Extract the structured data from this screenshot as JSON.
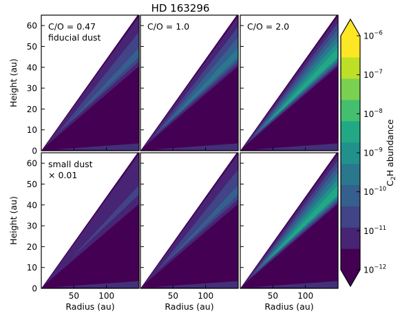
{
  "title": "HD 163296",
  "chart_data": {
    "type": "heatmap",
    "title": "HD 163296",
    "xlabel": "Radius (au)",
    "ylabel": "Height (au)",
    "xlim": [
      0,
      150
    ],
    "ylim": [
      0,
      65
    ],
    "xticks": [
      50,
      100
    ],
    "yticks": [
      0,
      10,
      20,
      30,
      40,
      50,
      60
    ],
    "colorbar": {
      "label_parts": [
        "C",
        "2",
        "H abundance"
      ],
      "scale": "log",
      "range": [
        -12,
        -6
      ],
      "ticks": [
        {
          "base": "10",
          "exp": "−6",
          "value": -6
        },
        {
          "base": "10",
          "exp": "−7",
          "value": -7
        },
        {
          "base": "10",
          "exp": "−8",
          "value": -8
        },
        {
          "base": "10",
          "exp": "−9",
          "value": -9
        },
        {
          "base": "10",
          "exp": "−10",
          "value": -10
        },
        {
          "base": "10",
          "exp": "−11",
          "value": -11
        },
        {
          "base": "10",
          "exp": "−12",
          "value": -12
        }
      ],
      "levels": [
        "#440154",
        "#482475",
        "#414487",
        "#355f8d",
        "#2a788e",
        "#21918c",
        "#22a884",
        "#44bf70",
        "#7ad151",
        "#bddf26",
        "#fde725"
      ]
    },
    "panels": [
      {
        "row": 0,
        "col": 0,
        "labels": [
          "C/O = 0.47",
          "fiducial dust"
        ],
        "peak_log": -10.3
      },
      {
        "row": 0,
        "col": 1,
        "labels": [
          "C/O = 1.0"
        ],
        "peak_log": -9.3
      },
      {
        "row": 0,
        "col": 2,
        "labels": [
          "C/O = 2.0"
        ],
        "peak_log": -8.3
      },
      {
        "row": 1,
        "col": 0,
        "labels": [
          "small dust",
          "× 0.01"
        ],
        "peak_log": -10.8
      },
      {
        "row": 1,
        "col": 1,
        "labels": [],
        "peak_log": -10.3
      },
      {
        "row": 1,
        "col": 2,
        "labels": [],
        "peak_log": -8.6
      }
    ]
  }
}
